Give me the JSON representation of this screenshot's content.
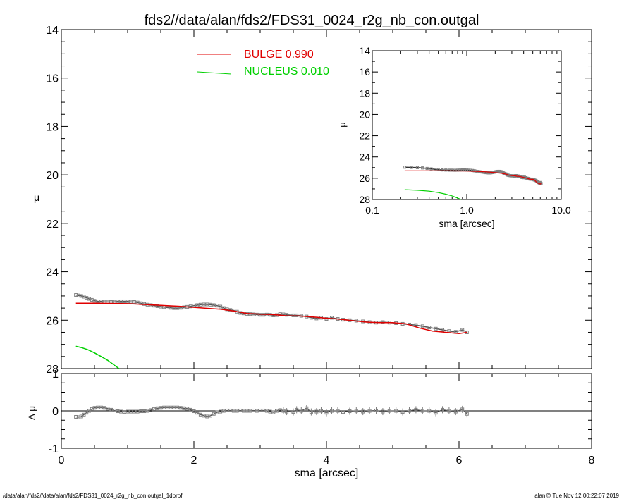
{
  "page": {
    "title": "fds2//data/alan/fds2/FDS31_0024_r2g_nb_con.outgal",
    "footer_left": "/data/alan/fds2//data/alan/fds2/FDS31_0024_r2g_nb_con.outgal_1dprof",
    "footer_right": "alan@  Tue Nov 12 00:22:07 2019"
  },
  "colors": {
    "bulge": "#e00000",
    "nucleus": "#00d000",
    "data": "#808080",
    "axes": "#000000"
  },
  "chart_data": [
    {
      "id": "main",
      "type": "line",
      "xlabel": "sma [arcsec]",
      "ylabel": "μ",
      "xlim": [
        0,
        8
      ],
      "ylim": [
        28,
        14
      ],
      "y_inverted": true,
      "xticks": [
        "0",
        "2",
        "4",
        "6",
        "8"
      ],
      "yticks": [
        "14",
        "16",
        "18",
        "20",
        "22",
        "24",
        "26",
        "28"
      ],
      "legend": [
        {
          "label": "BULGE  0.990",
          "color": "#e00000"
        },
        {
          "label": "NUCLEUS  0.010",
          "color": "#00d000"
        }
      ],
      "observed": {
        "x": [
          0.22,
          0.26,
          0.3,
          0.34,
          0.38,
          0.42,
          0.46,
          0.5,
          0.55,
          0.6,
          0.65,
          0.7,
          0.75,
          0.8,
          0.85,
          0.9,
          0.95,
          1.0,
          1.05,
          1.1,
          1.15,
          1.2,
          1.25,
          1.3,
          1.35,
          1.4,
          1.45,
          1.5,
          1.55,
          1.6,
          1.65,
          1.7,
          1.75,
          1.8,
          1.85,
          1.9,
          1.95,
          2.0,
          2.05,
          2.1,
          2.15,
          2.2,
          2.25,
          2.3,
          2.35,
          2.4,
          2.45,
          2.5,
          2.55,
          2.6,
          2.65,
          2.7,
          2.75,
          2.8,
          2.85,
          2.9,
          2.95,
          3.0,
          3.05,
          3.1,
          3.15,
          3.2,
          3.25,
          3.3,
          3.35,
          3.4,
          3.5,
          3.55,
          3.62,
          3.7,
          3.77,
          3.85,
          3.92,
          4.0,
          4.08,
          4.17,
          4.25,
          4.35,
          4.45,
          4.55,
          4.65,
          4.75,
          4.85,
          4.95,
          5.05,
          5.15,
          5.25,
          5.35,
          5.45,
          5.55,
          5.65,
          5.75,
          5.85,
          5.95,
          6.05,
          6.12
        ],
        "y": [
          24.96,
          24.98,
          25.0,
          25.03,
          25.08,
          25.12,
          25.16,
          25.2,
          25.22,
          25.23,
          25.24,
          25.24,
          25.25,
          25.24,
          25.23,
          25.22,
          25.22,
          25.23,
          25.24,
          25.25,
          25.27,
          25.3,
          25.33,
          25.36,
          25.38,
          25.4,
          25.42,
          25.44,
          25.46,
          25.48,
          25.49,
          25.5,
          25.5,
          25.49,
          25.47,
          25.45,
          25.43,
          25.4,
          25.38,
          25.36,
          25.35,
          25.35,
          25.36,
          25.38,
          25.4,
          25.44,
          25.5,
          25.55,
          25.58,
          25.6,
          25.65,
          25.7,
          25.72,
          25.74,
          25.75,
          25.76,
          25.77,
          25.78,
          25.78,
          25.77,
          25.78,
          25.8,
          25.79,
          25.75,
          25.76,
          25.78,
          25.8,
          25.8,
          25.82,
          25.85,
          25.9,
          25.93,
          25.9,
          25.95,
          25.9,
          25.95,
          25.98,
          26.0,
          26.02,
          26.05,
          26.08,
          26.1,
          26.08,
          26.1,
          26.12,
          26.15,
          26.18,
          26.2,
          26.25,
          26.3,
          26.35,
          26.4,
          26.45,
          26.48,
          26.4,
          26.5
        ]
      },
      "bulge": {
        "x": [
          0.22,
          0.5,
          0.8,
          1.0,
          1.3,
          1.6,
          1.8,
          2.0,
          2.2,
          2.4,
          2.6,
          2.8,
          3.0,
          3.2,
          3.4,
          3.6,
          3.8,
          4.0,
          4.2,
          4.4,
          4.6,
          4.8,
          5.0,
          5.2,
          5.4,
          5.6,
          5.8,
          6.0,
          6.12
        ],
        "y": [
          25.3,
          25.3,
          25.31,
          25.32,
          25.36,
          25.4,
          25.43,
          25.47,
          25.51,
          25.55,
          25.62,
          25.72,
          25.75,
          25.77,
          25.82,
          25.83,
          25.87,
          25.92,
          25.96,
          26.02,
          26.08,
          26.1,
          26.1,
          26.15,
          26.32,
          26.45,
          26.5,
          26.55,
          26.5
        ]
      },
      "nucleus": {
        "x": [
          0.22,
          0.3,
          0.4,
          0.5,
          0.6,
          0.7,
          0.8,
          0.87
        ],
        "y": [
          27.08,
          27.13,
          27.22,
          27.35,
          27.5,
          27.66,
          27.86,
          28.0
        ]
      }
    },
    {
      "id": "residual",
      "type": "scatter",
      "xlabel": "sma [arcsec]",
      "ylabel": "Δ μ",
      "xlim": [
        0,
        8
      ],
      "ylim": [
        -1,
        1
      ],
      "xticks": [
        "0",
        "2",
        "4",
        "6",
        "8"
      ],
      "yticks": [
        "-1",
        "0",
        "1"
      ],
      "x": [
        0.22,
        0.26,
        0.3,
        0.34,
        0.38,
        0.42,
        0.46,
        0.5,
        0.55,
        0.6,
        0.65,
        0.7,
        0.75,
        0.8,
        0.85,
        0.9,
        0.95,
        1.0,
        1.05,
        1.1,
        1.15,
        1.2,
        1.25,
        1.3,
        1.35,
        1.4,
        1.45,
        1.5,
        1.55,
        1.6,
        1.65,
        1.7,
        1.75,
        1.8,
        1.85,
        1.9,
        1.95,
        2.0,
        2.05,
        2.1,
        2.15,
        2.2,
        2.25,
        2.3,
        2.35,
        2.4,
        2.45,
        2.5,
        2.55,
        2.6,
        2.65,
        2.7,
        2.75,
        2.8,
        2.85,
        2.9,
        2.95,
        3.0,
        3.05,
        3.1,
        3.15,
        3.2,
        3.25,
        3.3,
        3.35,
        3.4,
        3.5,
        3.55,
        3.62,
        3.7,
        3.77,
        3.85,
        3.92,
        4.0,
        4.08,
        4.17,
        4.25,
        4.35,
        4.45,
        4.55,
        4.65,
        4.75,
        4.85,
        4.95,
        5.05,
        5.15,
        5.25,
        5.35,
        5.45,
        5.55,
        5.65,
        5.75,
        5.85,
        5.95,
        6.05,
        6.12
      ],
      "y": [
        -0.16,
        -0.17,
        -0.15,
        -0.1,
        -0.05,
        0.0,
        0.05,
        0.08,
        0.09,
        0.09,
        0.08,
        0.06,
        0.03,
        0.01,
        -0.01,
        -0.02,
        -0.03,
        -0.02,
        -0.02,
        -0.02,
        -0.02,
        -0.01,
        -0.01,
        0.0,
        0.02,
        0.05,
        0.07,
        0.08,
        0.09,
        0.09,
        0.09,
        0.09,
        0.09,
        0.08,
        0.07,
        0.06,
        0.03,
        -0.01,
        -0.05,
        -0.1,
        -0.13,
        -0.15,
        -0.13,
        -0.08,
        -0.04,
        -0.02,
        0.0,
        0.01,
        0.01,
        0.0,
        0.0,
        0.01,
        0.0,
        0.0,
        0.0,
        0.01,
        0.0,
        0.01,
        0.01,
        0.0,
        -0.02,
        -0.04,
        0.0,
        0.02,
        0.0,
        -0.02,
        -0.03,
        0.03,
        0.0,
        0.07,
        -0.03,
        -0.02,
        0.0,
        -0.05,
        0.0,
        0.0,
        -0.03,
        -0.01,
        0.0,
        -0.02,
        0.0,
        0.01,
        -0.02,
        0.0,
        0.0,
        -0.03,
        0.0,
        0.03,
        0.0,
        0.0,
        -0.05,
        0.03,
        0.0,
        -0.02,
        0.04,
        -0.08
      ]
    },
    {
      "id": "inset",
      "type": "line",
      "x_scale": "log",
      "xlabel": "sma [arcsec]",
      "ylabel": "μ",
      "xlim": [
        0.1,
        10.0
      ],
      "ylim": [
        28,
        14
      ],
      "y_inverted": true,
      "xticks": [
        "0.1",
        "1.0",
        "10.0"
      ],
      "yticks": [
        "14",
        "16",
        "18",
        "20",
        "22",
        "24",
        "26",
        "28"
      ]
    }
  ]
}
